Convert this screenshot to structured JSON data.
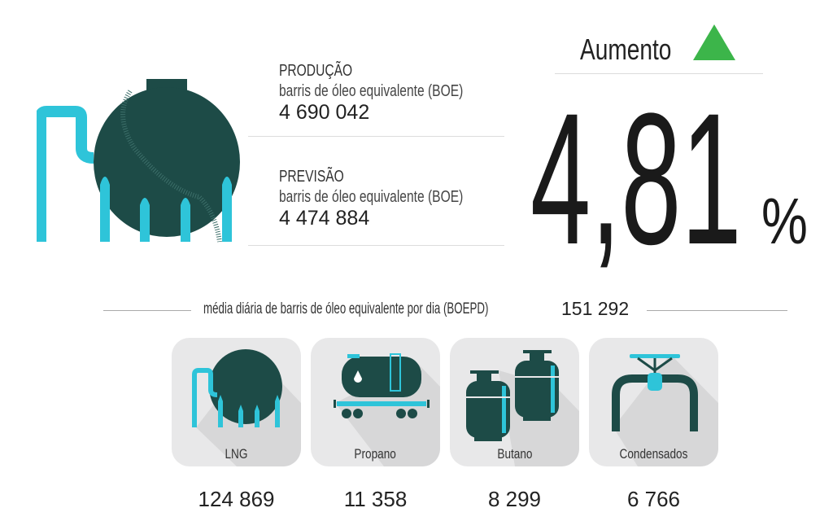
{
  "production": {
    "label": "PRODUÇÃO",
    "unit": "barris de óleo equivalente (BOE)",
    "value": "4 690 042"
  },
  "forecast": {
    "label": "PREVISÃO",
    "unit": "barris de óleo equivalente (BOE)",
    "value": "4 474 884"
  },
  "change": {
    "label": "Aumento",
    "direction": "up",
    "value": "4,81",
    "unit": "%",
    "color": "#3cb54a"
  },
  "daily": {
    "label": "média diária de barris de óleo equivalente por dia (BOEPD)",
    "value": "151 292"
  },
  "products": [
    {
      "label": "LNG",
      "value": "124 869",
      "icon": "lng-tank-icon"
    },
    {
      "label": "Propano",
      "value": "11 358",
      "icon": "tank-wagon-icon"
    },
    {
      "label": "Butano",
      "value": "8 299",
      "icon": "gas-cylinders-icon"
    },
    {
      "label": "Condensados",
      "value": "6 766",
      "icon": "pipe-valve-icon"
    }
  ],
  "colors": {
    "dark": "#1d4b47",
    "accent": "#2ec4d9",
    "card": "#e8e8e9"
  }
}
